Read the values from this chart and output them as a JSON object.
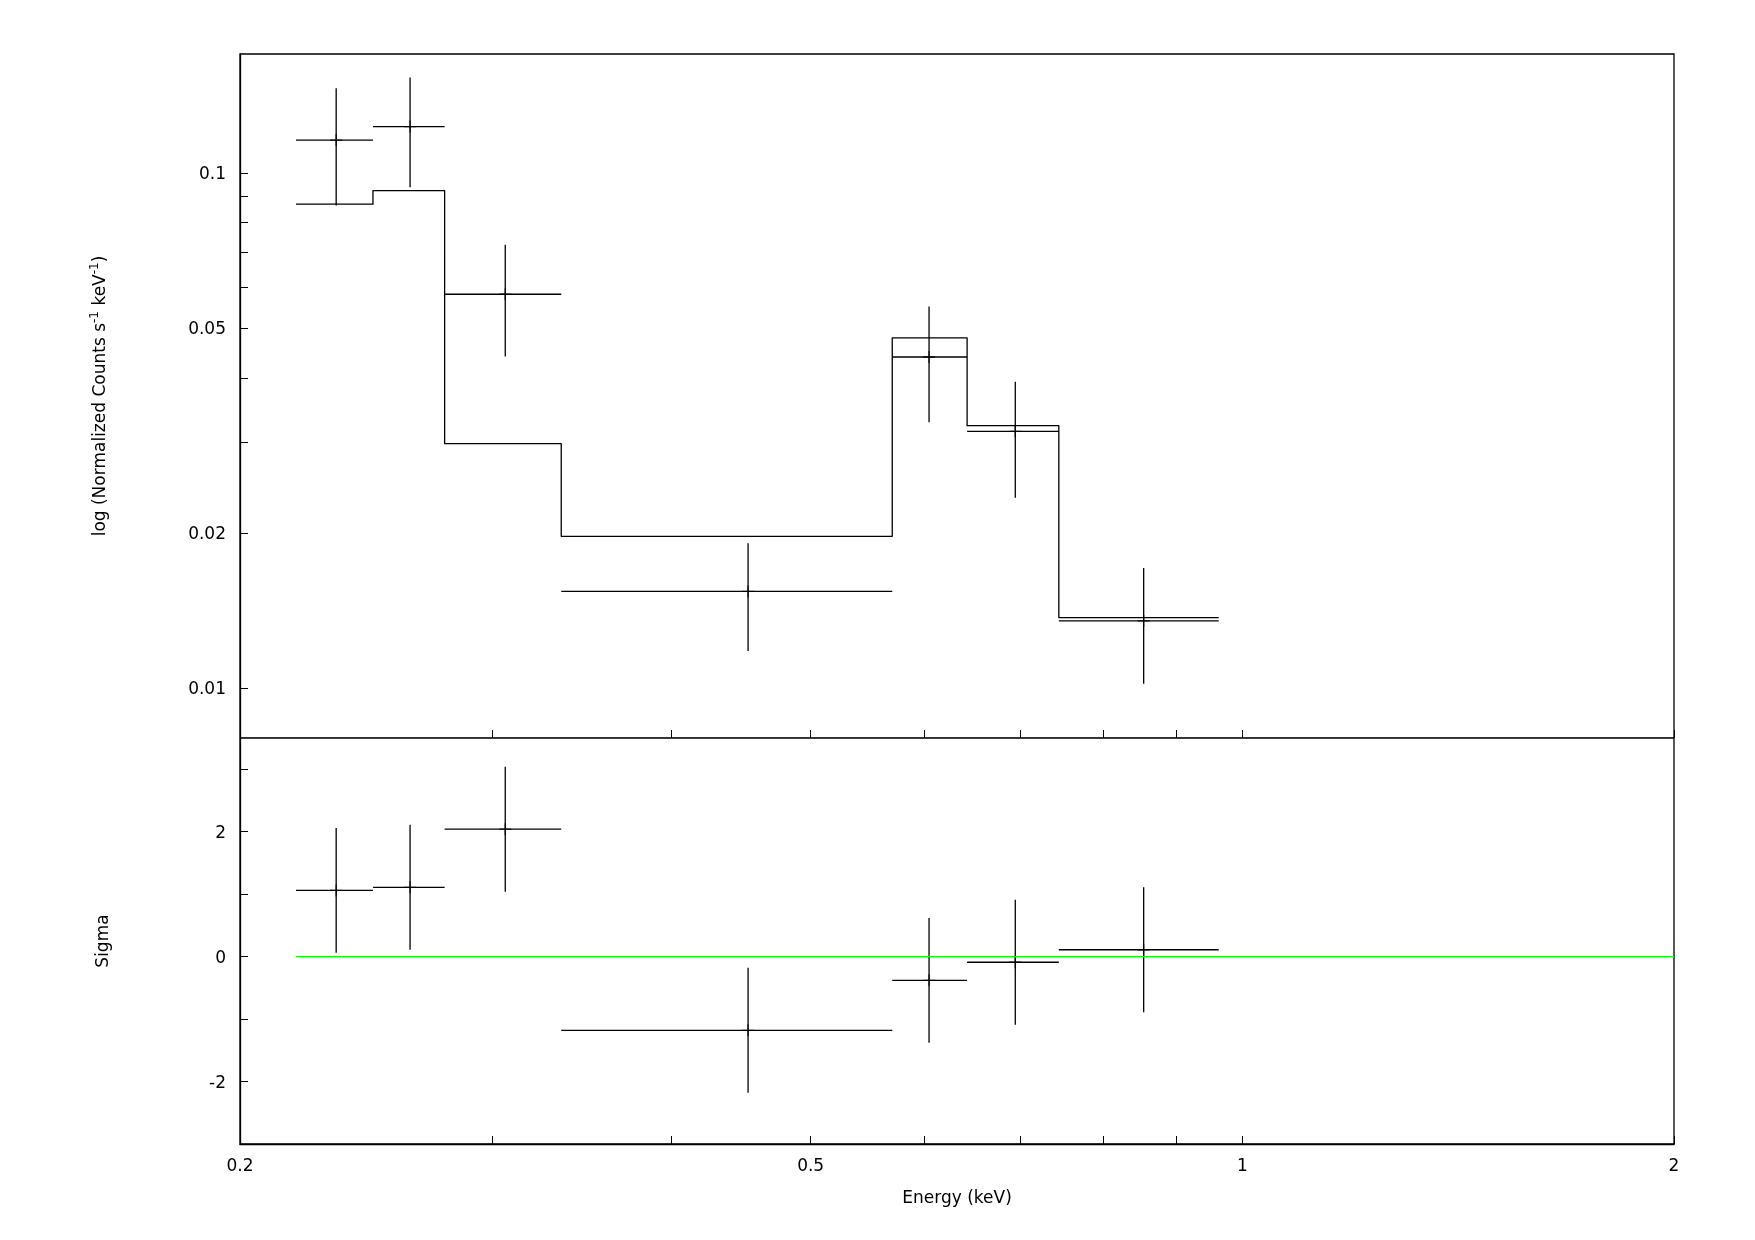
{
  "chart_data": [
    {
      "type": "scatter",
      "ylabel": "log (Normalized Counts s$^{-1}$ keV$^{-1}$)",
      "xlim": [
        0.2,
        2
      ],
      "xticks": [
        0.2,
        {
          "value": 0.3,
          "label": null
        },
        {
          "value": 0.4,
          "label": null
        },
        0.5,
        {
          "value": 0.6,
          "label": null
        },
        {
          "value": 0.7,
          "label": null
        },
        {
          "value": 0.8,
          "label": null
        },
        {
          "value": 0.9,
          "label": null
        },
        1,
        2
      ],
      "ylim": [
        0.008,
        0.17
      ],
      "yticks": [
        0.01,
        0.02,
        {
          "value": 0.03,
          "label": null
        },
        {
          "value": 0.04,
          "label": null
        },
        0.05,
        {
          "value": 0.06,
          "label": null
        },
        {
          "value": 0.07,
          "label": null
        },
        {
          "value": 0.08,
          "label": null
        },
        {
          "value": 0.09,
          "label": null
        },
        0.1
      ],
      "log": "xy",
      "tick_labels": "y",
      "series": [
        {
          "marker": "cross",
          "color": "#000000",
          "x": [
            0.2334,
            0.2628,
            0.3062,
            0.4522,
            0.6047,
            0.6945,
            0.8535
          ],
          "values": [
            0.1157,
            0.1229,
            0.0581,
            0.0154,
            0.0439,
            0.0315,
            0.0135
          ],
          "xerrors": [
            [
              0.2188,
              0.2476
            ],
            [
              0.2476,
              0.2778
            ],
            [
              0.2778,
              0.335
            ],
            [
              0.335,
              0.57
            ],
            [
              0.57,
              0.6428
            ],
            [
              0.6428,
              0.7448
            ],
            [
              0.7448,
              0.9628
            ]
          ],
          "errors": [
            [
              0.0864,
              0.1458
            ],
            [
              0.0937,
              0.153
            ],
            [
              0.044,
              0.0725
            ],
            [
              0.0118,
              0.0191
            ],
            [
              0.0328,
              0.055
            ],
            [
              0.0234,
              0.0393
            ],
            [
              0.0102,
              0.0171
            ]
          ]
        },
        {
          "type": "step",
          "marker": "none",
          "color": "#000000",
          "x": [
            0.2188,
            0.2476,
            0.2778,
            0.335,
            0.57,
            0.6428,
            0.7448,
            0.9628
          ],
          "values": [
            0.0869,
            0.0923,
            0.0298,
            0.0197,
            0.0478,
            0.0323,
            0.0137,
            0.0137
          ]
        }
      ]
    },
    {
      "type": "scatter",
      "xlabel": "Energy (keV)",
      "ylabel": "Sigma",
      "xlim": [
        0.2,
        2
      ],
      "xticks": [
        0.2,
        {
          "value": 0.3,
          "label": null
        },
        {
          "value": 0.4,
          "label": null
        },
        0.5,
        {
          "value": 0.6,
          "label": null
        },
        {
          "value": 0.7,
          "label": null
        },
        {
          "value": 0.8,
          "label": null
        },
        {
          "value": 0.9,
          "label": null
        },
        1,
        2
      ],
      "ylim": [
        -3,
        3.5
      ],
      "yticks": [
        -2,
        {
          "value": -1,
          "label": null
        },
        0,
        {
          "value": 1,
          "label": null
        },
        2,
        {
          "value": 3,
          "label": null
        }
      ],
      "log": "x",
      "series": [
        {
          "type": "line",
          "marker": "none",
          "color": "#00ff00",
          "x": [
            0.2188,
            2
          ],
          "values": [
            0,
            0
          ]
        },
        {
          "marker": "cross",
          "color": "#000000",
          "x": [
            0.2334,
            0.2628,
            0.3062,
            0.4522,
            0.6047,
            0.6945,
            0.8535
          ],
          "values": [
            1.06,
            1.11,
            2.04,
            -1.18,
            -0.38,
            -0.09,
            0.11
          ],
          "xerrors": [
            [
              0.2188,
              0.2476
            ],
            [
              0.2476,
              0.2778
            ],
            [
              0.2778,
              0.335
            ],
            [
              0.335,
              0.57
            ],
            [
              0.57,
              0.6428
            ],
            [
              0.6428,
              0.7448
            ],
            [
              0.7448,
              0.9628
            ]
          ],
          "errors": [
            1,
            1,
            1,
            1,
            1,
            1,
            1
          ]
        }
      ]
    }
  ]
}
